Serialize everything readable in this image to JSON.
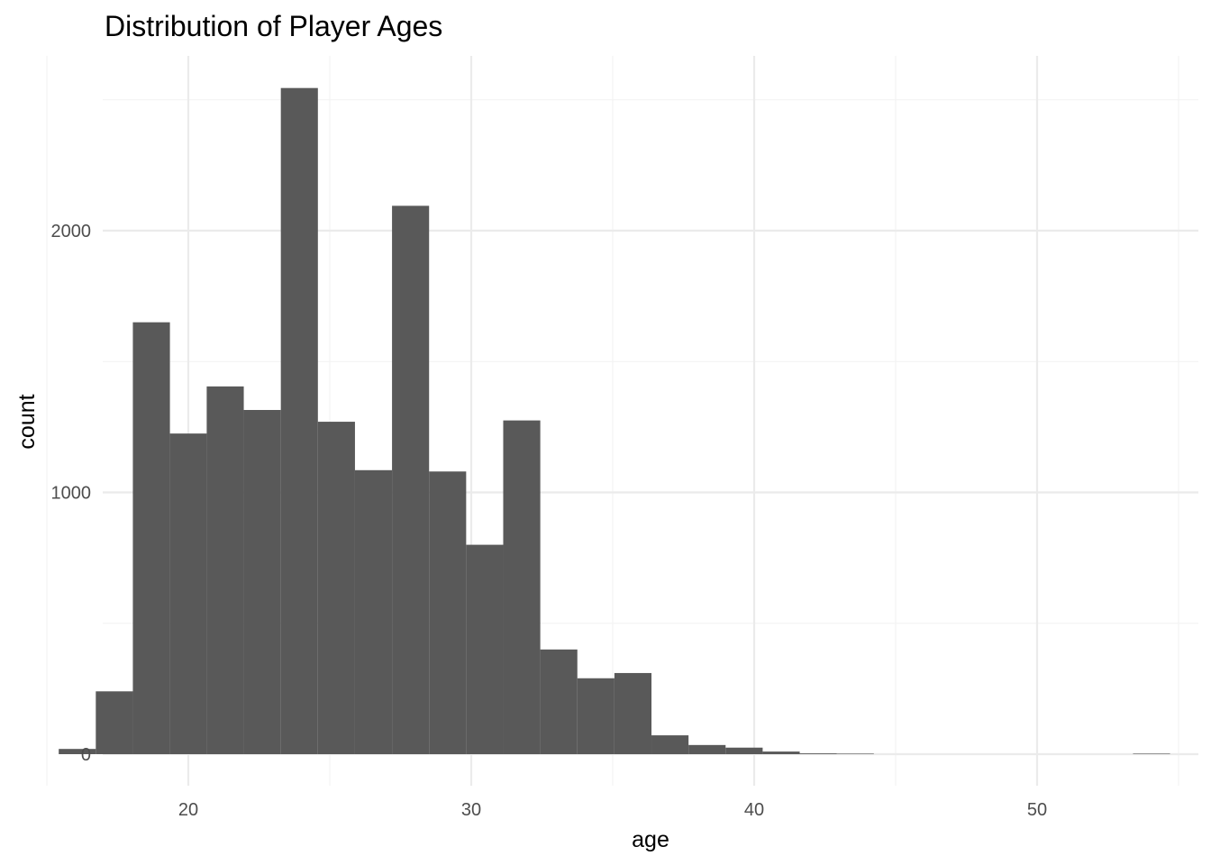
{
  "chart_data": {
    "type": "bar",
    "title": "Distribution of Player Ages",
    "xlabel": "age",
    "ylabel": "count",
    "xlim": [
      13.3,
      56.2
    ],
    "ylim": [
      -100,
      2670
    ],
    "x_ticks": [
      20,
      30,
      40,
      50
    ],
    "x_minor_ticks": [
      15,
      25,
      35,
      45,
      55
    ],
    "y_ticks": [
      0,
      1000,
      2000
    ],
    "y_minor_ticks": [
      500,
      1500,
      2500
    ],
    "grid": true,
    "legend": "none",
    "bar_color": "#595959",
    "bins": [
      {
        "x0": 15.42,
        "x1": 16.73,
        "count": 20
      },
      {
        "x0": 16.73,
        "x1": 18.04,
        "count": 240
      },
      {
        "x0": 18.04,
        "x1": 19.35,
        "count": 1650
      },
      {
        "x0": 19.35,
        "x1": 20.65,
        "count": 1225
      },
      {
        "x0": 20.65,
        "x1": 21.96,
        "count": 1405
      },
      {
        "x0": 21.96,
        "x1": 23.27,
        "count": 1315
      },
      {
        "x0": 23.27,
        "x1": 24.58,
        "count": 2545
      },
      {
        "x0": 24.58,
        "x1": 25.89,
        "count": 1270
      },
      {
        "x0": 25.89,
        "x1": 27.2,
        "count": 1085
      },
      {
        "x0": 27.2,
        "x1": 28.51,
        "count": 2095
      },
      {
        "x0": 28.51,
        "x1": 29.82,
        "count": 1080
      },
      {
        "x0": 29.82,
        "x1": 31.13,
        "count": 800
      },
      {
        "x0": 31.13,
        "x1": 32.44,
        "count": 1275
      },
      {
        "x0": 32.44,
        "x1": 33.75,
        "count": 400
      },
      {
        "x0": 33.75,
        "x1": 35.06,
        "count": 290
      },
      {
        "x0": 35.06,
        "x1": 36.37,
        "count": 310
      },
      {
        "x0": 36.37,
        "x1": 37.68,
        "count": 72
      },
      {
        "x0": 37.68,
        "x1": 38.99,
        "count": 35
      },
      {
        "x0": 38.99,
        "x1": 40.3,
        "count": 25
      },
      {
        "x0": 40.3,
        "x1": 41.61,
        "count": 10
      },
      {
        "x0": 41.61,
        "x1": 42.92,
        "count": 3
      },
      {
        "x0": 42.92,
        "x1": 44.23,
        "count": 2
      },
      {
        "x0": 44.23,
        "x1": 45.54,
        "count": 0
      },
      {
        "x0": 45.54,
        "x1": 46.85,
        "count": 0
      },
      {
        "x0": 46.85,
        "x1": 48.15,
        "count": 0
      },
      {
        "x0": 48.15,
        "x1": 49.46,
        "count": 0
      },
      {
        "x0": 49.46,
        "x1": 50.77,
        "count": 0
      },
      {
        "x0": 50.77,
        "x1": 52.08,
        "count": 0
      },
      {
        "x0": 52.08,
        "x1": 53.39,
        "count": 0
      },
      {
        "x0": 53.39,
        "x1": 54.7,
        "count": 2
      }
    ]
  }
}
